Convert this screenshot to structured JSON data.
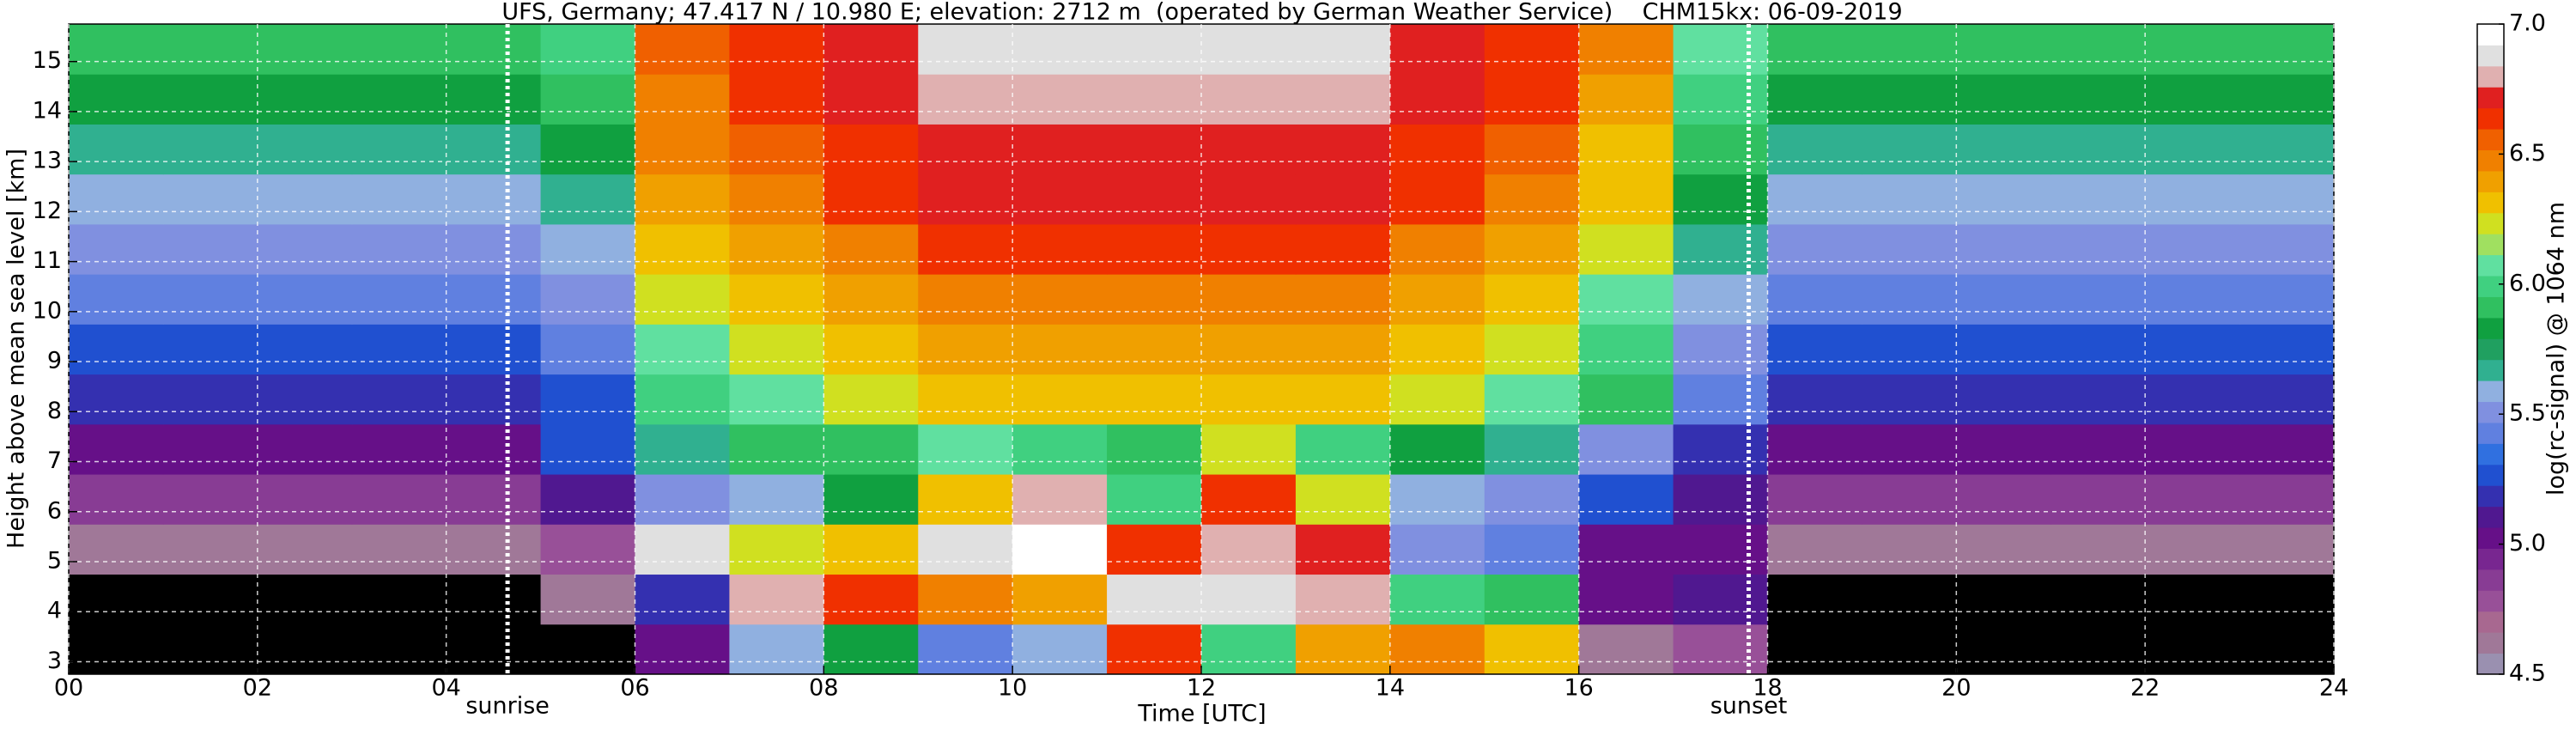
{
  "chart_data": {
    "type": "heatmap",
    "title": "UFS, Germany; 47.417 N / 10.980 E; elevation: 2712 m  (operated by German Weather Service)    CHM15kx: 06-09-2019",
    "xlabel": "Time [UTC]",
    "ylabel": "Height above mean sea level [km]",
    "colorbar_label": "log(rc-signal) @ 1064 nm",
    "xlim": [
      0,
      24
    ],
    "ylim": [
      2.75,
      15.75
    ],
    "xticks": [
      {
        "value": 0,
        "label": "00"
      },
      {
        "value": 2,
        "label": "02"
      },
      {
        "value": 4,
        "label": "04"
      },
      {
        "value": 6,
        "label": "06"
      },
      {
        "value": 8,
        "label": "08"
      },
      10,
      12,
      14,
      16,
      18,
      20,
      22,
      24
    ],
    "yticks": [
      3,
      4,
      5,
      6,
      7,
      8,
      9,
      10,
      11,
      12,
      13,
      14,
      15
    ],
    "grid": true,
    "clim": [
      4.5,
      7.0
    ],
    "cticks": [
      4.5,
      {
        "value": 5,
        "label": "5.0"
      },
      5.5,
      {
        "value": 6,
        "label": "6.0"
      },
      6.5,
      {
        "value": 7,
        "label": "7.0"
      }
    ],
    "colorscale": [
      "#9a90b0",
      "#a07898",
      "#a86890",
      "#985098",
      "#883c94",
      "#782690",
      "#661088",
      "#501890",
      "#3430b0",
      "#2050d0",
      "#3070e0",
      "#6080e0",
      "#8090e0",
      "#90b0e0",
      "#30b090",
      "#20a060",
      "#10a040",
      "#30c060",
      "#40d080",
      "#60e0a0",
      "#a0e060",
      "#d0e020",
      "#f0c000",
      "#f0a000",
      "#f08000",
      "#f06000",
      "#f03000",
      "#e02020",
      "#e0b0b0",
      "#e0e0e0",
      "#ffffff"
    ],
    "below_color": "#000000",
    "annotations": [
      {
        "x": 4.65,
        "label": "sunrise"
      },
      {
        "x": 17.8,
        "label": "sunset"
      }
    ],
    "x": [
      0,
      1,
      2,
      3,
      4,
      5,
      6,
      7,
      8,
      9,
      10,
      11,
      12,
      13,
      14,
      15,
      16,
      17,
      18,
      19,
      20,
      21,
      22,
      23,
      24
    ],
    "y": [
      2.75,
      3.75,
      4.75,
      5.75,
      6.75,
      7.75,
      8.75,
      9.75,
      10.75,
      11.75,
      12.75,
      13.75,
      14.75,
      15.75
    ],
    "z": [
      [
        4.3,
        4.3,
        4.3,
        4.3,
        4.3,
        4.4,
        5.0,
        5.6,
        5.8,
        5.4,
        5.6,
        6.6,
        6.0,
        6.4,
        6.5,
        6.3,
        4.6,
        4.8,
        4.3,
        4.3,
        4.3,
        4.3,
        4.3,
        4.3
      ],
      [
        4.35,
        4.35,
        4.35,
        4.35,
        4.4,
        4.6,
        5.2,
        6.8,
        6.6,
        6.5,
        6.4,
        6.9,
        6.9,
        6.8,
        6.0,
        5.9,
        5.0,
        5.1,
        4.35,
        4.35,
        4.35,
        4.35,
        4.35,
        4.35
      ],
      [
        4.6,
        4.6,
        4.6,
        4.6,
        4.6,
        4.8,
        6.9,
        6.2,
        6.3,
        6.9,
        7.0,
        6.6,
        6.8,
        6.7,
        5.5,
        5.4,
        5.0,
        5.0,
        4.6,
        4.6,
        4.6,
        4.6,
        4.6,
        4.6
      ],
      [
        4.9,
        4.9,
        4.9,
        4.9,
        4.9,
        5.1,
        5.5,
        5.6,
        5.8,
        6.3,
        6.8,
        6.0,
        6.6,
        6.2,
        5.6,
        5.5,
        5.3,
        5.1,
        4.9,
        4.9,
        4.9,
        4.9,
        4.9,
        4.9
      ],
      [
        5.0,
        5.0,
        5.0,
        5.0,
        5.0,
        5.3,
        5.7,
        5.9,
        5.9,
        6.1,
        6.0,
        5.9,
        6.2,
        6.0,
        5.8,
        5.7,
        5.5,
        5.2,
        5.0,
        5.0,
        5.0,
        5.0,
        5.0,
        5.0
      ],
      [
        5.2,
        5.2,
        5.2,
        5.2,
        5.2,
        5.3,
        6.0,
        6.1,
        6.2,
        6.3,
        6.3,
        6.3,
        6.3,
        6.3,
        6.2,
        6.1,
        5.9,
        5.4,
        5.2,
        5.2,
        5.2,
        5.2,
        5.2,
        5.2
      ],
      [
        5.3,
        5.3,
        5.3,
        5.3,
        5.3,
        5.4,
        6.1,
        6.2,
        6.3,
        6.4,
        6.4,
        6.4,
        6.4,
        6.4,
        6.3,
        6.2,
        6.0,
        5.5,
        5.3,
        5.3,
        5.3,
        5.3,
        5.3,
        5.3
      ],
      [
        5.4,
        5.4,
        5.4,
        5.4,
        5.4,
        5.5,
        6.2,
        6.3,
        6.4,
        6.5,
        6.5,
        6.5,
        6.5,
        6.5,
        6.4,
        6.3,
        6.1,
        5.6,
        5.4,
        5.4,
        5.4,
        5.4,
        5.4,
        5.4
      ],
      [
        5.5,
        5.5,
        5.5,
        5.5,
        5.5,
        5.6,
        6.3,
        6.4,
        6.5,
        6.6,
        6.6,
        6.6,
        6.6,
        6.6,
        6.5,
        6.4,
        6.2,
        5.7,
        5.5,
        5.5,
        5.5,
        5.5,
        5.5,
        5.5
      ],
      [
        5.6,
        5.6,
        5.6,
        5.6,
        5.6,
        5.7,
        6.4,
        6.5,
        6.6,
        6.7,
        6.7,
        6.7,
        6.7,
        6.7,
        6.6,
        6.5,
        6.3,
        5.8,
        5.6,
        5.6,
        5.6,
        5.6,
        5.6,
        5.6
      ],
      [
        5.7,
        5.7,
        5.7,
        5.7,
        5.7,
        5.8,
        6.45,
        6.55,
        6.65,
        6.75,
        6.75,
        6.75,
        6.75,
        6.75,
        6.65,
        6.55,
        6.35,
        5.9,
        5.7,
        5.7,
        5.7,
        5.7,
        5.7,
        5.7
      ],
      [
        5.8,
        5.8,
        5.8,
        5.8,
        5.8,
        5.9,
        6.5,
        6.6,
        6.7,
        6.8,
        6.8,
        6.8,
        6.8,
        6.8,
        6.7,
        6.6,
        6.4,
        6.0,
        5.8,
        5.8,
        5.8,
        5.8,
        5.8,
        5.8
      ],
      [
        5.9,
        5.9,
        5.9,
        5.9,
        5.9,
        6.0,
        6.55,
        6.65,
        6.75,
        6.85,
        6.85,
        6.85,
        6.85,
        6.85,
        6.75,
        6.65,
        6.45,
        6.1,
        5.9,
        5.9,
        5.9,
        5.9,
        5.9,
        5.9
      ]
    ]
  }
}
